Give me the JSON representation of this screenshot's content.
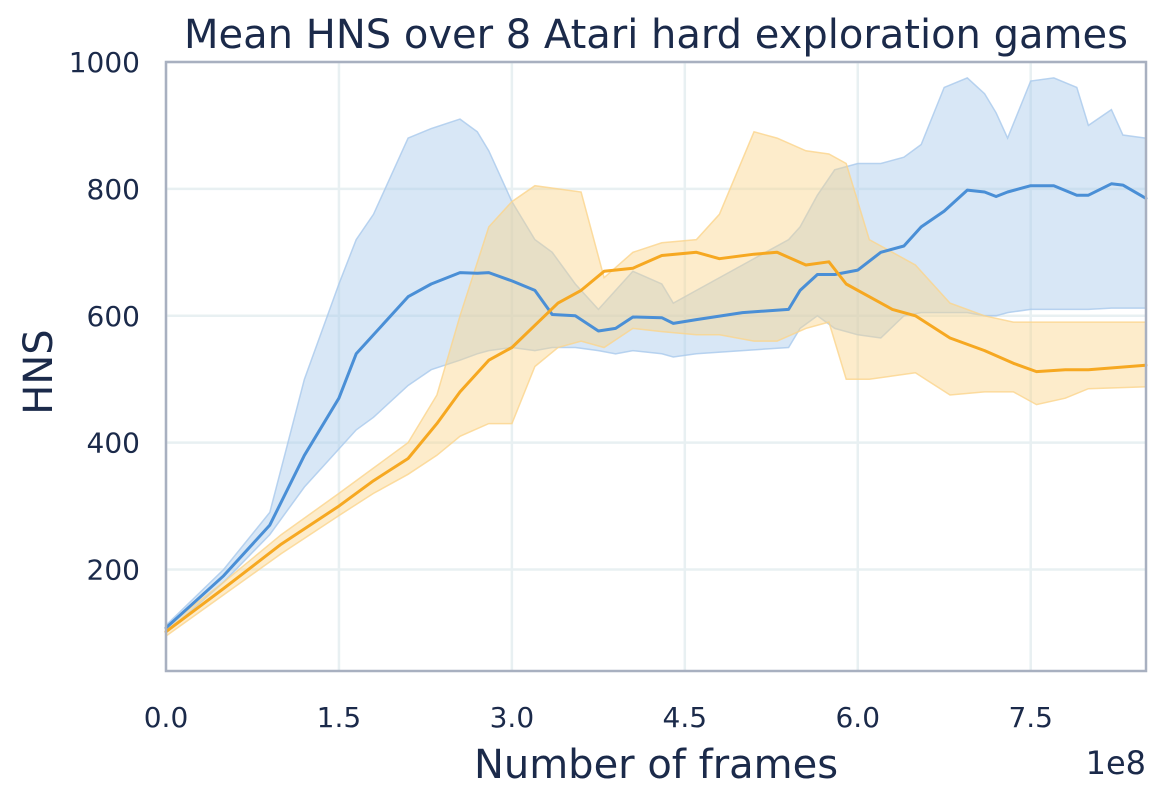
{
  "chart_data": {
    "type": "line",
    "title": "Mean HNS over 8 Atari hard exploration games",
    "xlabel": "Number of frames",
    "ylabel": "HNS",
    "x_offset_label": "1e8",
    "xlim": [
      0,
      8.5
    ],
    "ylim": [
      40,
      1000
    ],
    "xticks": [
      0,
      1.5,
      3.0,
      4.5,
      6.0,
      7.5
    ],
    "xtick_labels": [
      "0.0",
      "1.5",
      "3.0",
      "4.5",
      "6.0",
      "7.5"
    ],
    "yticks": [
      200,
      400,
      600,
      800,
      1000
    ],
    "ytick_labels": [
      "200",
      "400",
      "600",
      "800",
      "1000"
    ],
    "grid": true,
    "legend": "none",
    "series": [
      {
        "color": "#4a8fd6",
        "band_color": "#a9c9ec",
        "x": [
          0.0,
          0.5,
          0.9,
          1.2,
          1.5,
          1.65,
          1.8,
          2.1,
          2.3,
          2.55,
          2.7,
          2.8,
          3.0,
          3.2,
          3.35,
          3.55,
          3.75,
          3.9,
          4.05,
          4.3,
          4.4,
          4.6,
          5.0,
          5.4,
          5.5,
          5.65,
          5.8,
          6.0,
          6.2,
          6.4,
          6.55,
          6.75,
          6.95,
          7.1,
          7.2,
          7.3,
          7.5,
          7.7,
          7.9,
          8.0,
          8.2,
          8.3,
          8.5
        ],
        "y": [
          108,
          190,
          270,
          380,
          470,
          540,
          570,
          630,
          650,
          668,
          667,
          668,
          655,
          640,
          602,
          600,
          576,
          580,
          598,
          597,
          588,
          594,
          605,
          610,
          640,
          665,
          665,
          672,
          700,
          710,
          740,
          765,
          798,
          795,
          788,
          795,
          805,
          805,
          790,
          790,
          808,
          806,
          785
        ],
        "upper": [
          112,
          200,
          290,
          500,
          650,
          720,
          760,
          880,
          895,
          910,
          890,
          860,
          780,
          720,
          700,
          650,
          610,
          640,
          670,
          650,
          620,
          640,
          680,
          720,
          740,
          790,
          830,
          840,
          840,
          850,
          870,
          960,
          975,
          950,
          920,
          880,
          970,
          975,
          960,
          900,
          925,
          885,
          880
        ],
        "lower": [
          100,
          180,
          255,
          330,
          390,
          420,
          440,
          490,
          515,
          530,
          540,
          545,
          550,
          545,
          550,
          550,
          545,
          540,
          545,
          540,
          535,
          540,
          545,
          550,
          580,
          600,
          580,
          570,
          565,
          600,
          605,
          605,
          605,
          600,
          600,
          605,
          610,
          610,
          610,
          610,
          612,
          612,
          612
        ]
      },
      {
        "color": "#f6a821",
        "band_color": "#fbd48c",
        "x": [
          0.0,
          0.5,
          1.0,
          1.5,
          1.8,
          2.1,
          2.35,
          2.55,
          2.8,
          3.0,
          3.2,
          3.4,
          3.6,
          3.8,
          4.05,
          4.3,
          4.6,
          4.8,
          5.1,
          5.3,
          5.55,
          5.75,
          5.9,
          6.1,
          6.3,
          6.5,
          6.8,
          7.1,
          7.35,
          7.55,
          7.8,
          8.0,
          8.5
        ],
        "y": [
          102,
          170,
          240,
          300,
          340,
          375,
          430,
          480,
          530,
          550,
          585,
          620,
          640,
          670,
          675,
          695,
          700,
          690,
          697,
          700,
          680,
          685,
          650,
          630,
          610,
          600,
          565,
          545,
          525,
          512,
          515,
          515,
          522
        ],
        "upper": [
          110,
          180,
          255,
          320,
          360,
          400,
          475,
          600,
          740,
          780,
          805,
          800,
          795,
          660,
          700,
          715,
          720,
          760,
          890,
          880,
          860,
          855,
          840,
          720,
          700,
          680,
          620,
          600,
          590,
          590,
          590,
          590,
          590
        ],
        "lower": [
          95,
          160,
          225,
          285,
          320,
          350,
          380,
          410,
          430,
          430,
          520,
          550,
          560,
          550,
          580,
          575,
          570,
          570,
          560,
          560,
          580,
          590,
          500,
          500,
          505,
          510,
          475,
          480,
          480,
          460,
          470,
          485,
          488
        ]
      }
    ]
  }
}
